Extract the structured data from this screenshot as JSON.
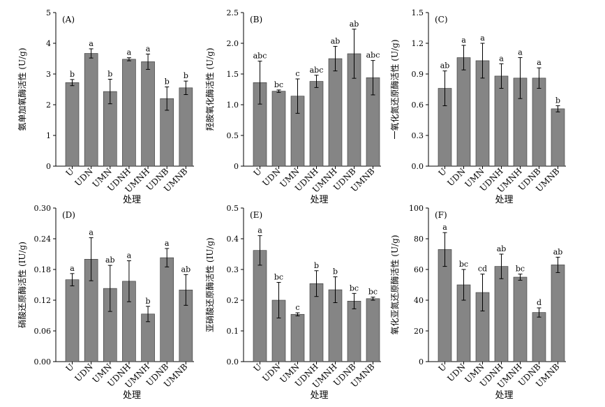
{
  "colors": {
    "bar": "#858585",
    "axis": "#000000"
  },
  "chart_data": [
    {
      "type": "bar",
      "panel_label": "(A)",
      "ylabel": "氨单加氧酶活性 (U/g)",
      "xlabel": "处理",
      "categories": [
        "U",
        "UDN",
        "UMN",
        "UDNH",
        "UMNH",
        "UDNB",
        "UMNB"
      ],
      "values": [
        2.72,
        3.67,
        2.43,
        3.48,
        3.4,
        2.2,
        2.55
      ],
      "errors": [
        0.1,
        0.15,
        0.4,
        0.05,
        0.25,
        0.38,
        0.22
      ],
      "letters": [
        "b",
        "a",
        "b",
        "a",
        "a",
        "b",
        "b"
      ],
      "ylim": [
        0,
        5
      ],
      "yticks": [
        0,
        1,
        2,
        3,
        4,
        5
      ],
      "ytick_labels": [
        "0",
        "1",
        "2",
        "3",
        "4",
        "5"
      ]
    },
    {
      "type": "bar",
      "panel_label": "(B)",
      "ylabel": "羟胺氧化酶活性 (U/g)",
      "xlabel": "处理",
      "categories": [
        "U",
        "UDN",
        "UMN",
        "UDNH",
        "UMNH",
        "UDNB",
        "UMNB"
      ],
      "values": [
        1.36,
        1.22,
        1.14,
        1.38,
        1.75,
        1.83,
        1.44
      ],
      "errors": [
        0.35,
        0.02,
        0.28,
        0.1,
        0.2,
        0.4,
        0.28
      ],
      "letters": [
        "abc",
        "bc",
        "c",
        "abc",
        "ab",
        "ab",
        "abc"
      ],
      "ylim": [
        0,
        2.5
      ],
      "yticks": [
        0,
        0.5,
        1.0,
        1.5,
        2.0,
        2.5
      ],
      "ytick_labels": [
        "0",
        "0.5",
        "1.0",
        "1.5",
        "2.0",
        "2.5"
      ]
    },
    {
      "type": "bar",
      "panel_label": "(C)",
      "ylabel": "一氧化氮还原酶活性 (U/g)",
      "xlabel": "处理",
      "categories": [
        "U",
        "UDN",
        "UMN",
        "UDNH",
        "UMNH",
        "UDNB",
        "UMNB"
      ],
      "values": [
        0.76,
        1.06,
        1.03,
        0.88,
        0.86,
        0.86,
        0.56
      ],
      "errors": [
        0.17,
        0.12,
        0.17,
        0.12,
        0.2,
        0.1,
        0.03
      ],
      "letters": [
        "ab",
        "a",
        "a",
        "a",
        "a",
        "a",
        "b"
      ],
      "ylim": [
        0,
        1.5
      ],
      "yticks": [
        0,
        0.3,
        0.6,
        0.9,
        1.2,
        1.5
      ],
      "ytick_labels": [
        "0.0",
        "0.3",
        "0.6",
        "0.9",
        "1.2",
        "1.5"
      ]
    },
    {
      "type": "bar",
      "panel_label": "(D)",
      "ylabel": "硝酸还原酶活性 (IU/g)",
      "xlabel": "处理",
      "categories": [
        "U",
        "UDN",
        "UMN",
        "UDNH",
        "UMNH",
        "UDNB",
        "UMNB"
      ],
      "values": [
        0.16,
        0.2,
        0.143,
        0.157,
        0.093,
        0.203,
        0.14
      ],
      "errors": [
        0.012,
        0.042,
        0.045,
        0.04,
        0.015,
        0.018,
        0.03
      ],
      "letters": [
        "a",
        "a",
        "ab",
        "a",
        "b",
        "a",
        "ab"
      ],
      "ylim": [
        0,
        0.3
      ],
      "yticks": [
        0,
        0.06,
        0.12,
        0.18,
        0.24,
        0.3
      ],
      "ytick_labels": [
        "0.00",
        "0.06",
        "0.12",
        "0.18",
        "0.24",
        "0.30"
      ]
    },
    {
      "type": "bar",
      "panel_label": "(E)",
      "ylabel": "亚硝酸还原酶活性 (IU/g)",
      "xlabel": "处理",
      "categories": [
        "U",
        "UDN",
        "UMN",
        "UDNH",
        "UMNH",
        "UDNB",
        "UMNB"
      ],
      "values": [
        0.362,
        0.2,
        0.154,
        0.254,
        0.234,
        0.197,
        0.205
      ],
      "errors": [
        0.048,
        0.058,
        0.005,
        0.042,
        0.042,
        0.025,
        0.005
      ],
      "letters": [
        "a",
        "bc",
        "c",
        "b",
        "b",
        "bc",
        "bc"
      ],
      "ylim": [
        0,
        0.5
      ],
      "yticks": [
        0,
        0.1,
        0.2,
        0.3,
        0.4,
        0.5
      ],
      "ytick_labels": [
        "0.0",
        "0.1",
        "0.2",
        "0.3",
        "0.4",
        "0.5"
      ]
    },
    {
      "type": "bar",
      "panel_label": "(F)",
      "ylabel": "氧化亚氮还原酶活性 (U/g)",
      "xlabel": "处理",
      "categories": [
        "U",
        "UDN",
        "UMN",
        "UDNH",
        "UMNH",
        "UDNB",
        "UMNB"
      ],
      "values": [
        73,
        50,
        45,
        62,
        55,
        32,
        63
      ],
      "errors": [
        11,
        10,
        12,
        8,
        2,
        3,
        5
      ],
      "letters": [
        "a",
        "bc",
        "cd",
        "ab",
        "bc",
        "d",
        "ab"
      ],
      "ylim": [
        0,
        100
      ],
      "yticks": [
        0,
        20,
        40,
        60,
        80,
        100
      ],
      "ytick_labels": [
        "0",
        "20",
        "40",
        "60",
        "80",
        "100"
      ]
    }
  ]
}
